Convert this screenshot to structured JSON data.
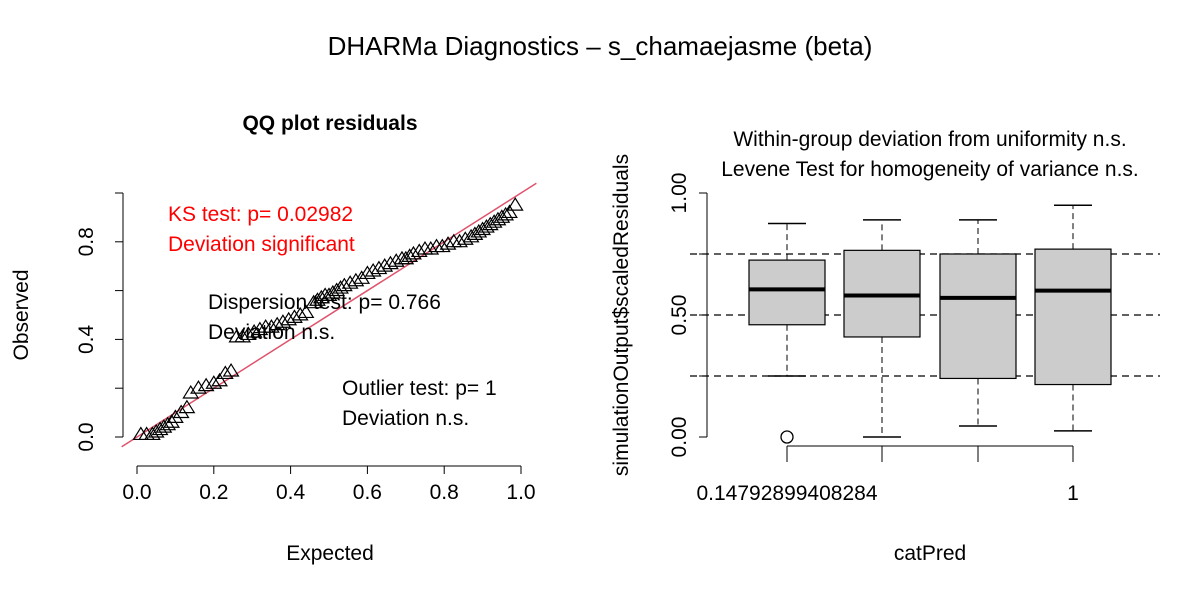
{
  "main_title": "DHARMa Diagnostics – s_chamaejasme (beta)",
  "colors": {
    "ks_text": "#FF0000",
    "ref_line": "#DF536B",
    "box_fill": "#CCCCCC",
    "ink": "#000000"
  },
  "chart_data": [
    {
      "type": "scatter",
      "title": "QQ plot residuals",
      "xlabel": "Expected",
      "ylabel": "Observed",
      "xlim": [
        0,
        1
      ],
      "ylim": [
        0,
        1
      ],
      "x_ticks": [
        "0.0",
        "0.2",
        "0.4",
        "0.6",
        "0.8",
        "1.0"
      ],
      "y_ticks": [
        "0.0",
        "0.4",
        "0.8"
      ],
      "marker": "triangle",
      "reference_line": {
        "intercept": 0,
        "slope": 1
      },
      "points": [
        [
          0.01,
          0.01
        ],
        [
          0.025,
          0.01
        ],
        [
          0.04,
          0.01
        ],
        [
          0.05,
          0.02
        ],
        [
          0.06,
          0.03
        ],
        [
          0.07,
          0.04
        ],
        [
          0.08,
          0.05
        ],
        [
          0.09,
          0.06
        ],
        [
          0.1,
          0.08
        ],
        [
          0.115,
          0.1
        ],
        [
          0.13,
          0.12
        ],
        [
          0.14,
          0.18
        ],
        [
          0.16,
          0.2
        ],
        [
          0.18,
          0.21
        ],
        [
          0.2,
          0.22
        ],
        [
          0.215,
          0.23
        ],
        [
          0.23,
          0.26
        ],
        [
          0.245,
          0.27
        ],
        [
          0.26,
          0.41
        ],
        [
          0.275,
          0.41
        ],
        [
          0.29,
          0.42
        ],
        [
          0.305,
          0.43
        ],
        [
          0.32,
          0.44
        ],
        [
          0.335,
          0.45
        ],
        [
          0.35,
          0.45
        ],
        [
          0.365,
          0.46
        ],
        [
          0.38,
          0.47
        ],
        [
          0.395,
          0.48
        ],
        [
          0.41,
          0.49
        ],
        [
          0.425,
          0.5
        ],
        [
          0.44,
          0.51
        ],
        [
          0.46,
          0.55
        ],
        [
          0.47,
          0.56
        ],
        [
          0.48,
          0.57
        ],
        [
          0.49,
          0.58
        ],
        [
          0.5,
          0.58
        ],
        [
          0.51,
          0.59
        ],
        [
          0.52,
          0.6
        ],
        [
          0.53,
          0.61
        ],
        [
          0.54,
          0.62
        ],
        [
          0.555,
          0.63
        ],
        [
          0.57,
          0.64
        ],
        [
          0.585,
          0.65
        ],
        [
          0.6,
          0.67
        ],
        [
          0.615,
          0.68
        ],
        [
          0.63,
          0.69
        ],
        [
          0.645,
          0.7
        ],
        [
          0.66,
          0.71
        ],
        [
          0.675,
          0.72
        ],
        [
          0.69,
          0.73
        ],
        [
          0.7,
          0.73
        ],
        [
          0.71,
          0.74
        ],
        [
          0.72,
          0.75
        ],
        [
          0.735,
          0.76
        ],
        [
          0.75,
          0.77
        ],
        [
          0.765,
          0.77
        ],
        [
          0.78,
          0.78
        ],
        [
          0.795,
          0.78
        ],
        [
          0.81,
          0.79
        ],
        [
          0.825,
          0.8
        ],
        [
          0.84,
          0.8
        ],
        [
          0.855,
          0.81
        ],
        [
          0.87,
          0.82
        ],
        [
          0.88,
          0.83
        ],
        [
          0.89,
          0.84
        ],
        [
          0.9,
          0.85
        ],
        [
          0.91,
          0.86
        ],
        [
          0.92,
          0.87
        ],
        [
          0.93,
          0.88
        ],
        [
          0.94,
          0.89
        ],
        [
          0.95,
          0.9
        ],
        [
          0.96,
          0.91
        ],
        [
          0.97,
          0.92
        ],
        [
          0.985,
          0.95
        ]
      ],
      "annotations": {
        "ks": [
          "KS test: p= 0.02982",
          "Deviation  significant"
        ],
        "dispersion": [
          "Dispersion test: p= 0.766",
          "Deviation  n.s."
        ],
        "outlier": [
          "Outlier test: p= 1",
          "Deviation  n.s."
        ]
      }
    },
    {
      "type": "boxplot",
      "title": [
        "Within-group deviation from uniformity n.s.",
        "Levene Test for homogeneity of variance n.s."
      ],
      "xlabel": "catPred",
      "ylabel": "simulationOutput$scaledResiduals",
      "ylim": [
        0,
        1
      ],
      "y_ticks": [
        "0.00",
        "0.50",
        "1.00"
      ],
      "hlines": [
        0.25,
        0.5,
        0.75
      ],
      "x_tick_labels": [
        "0.14792899408284",
        "",
        "",
        "1"
      ],
      "boxes": [
        {
          "whisker_low": 0.25,
          "q1": 0.46,
          "median": 0.605,
          "q3": 0.725,
          "whisker_high": 0.875,
          "outliers": [
            0.0
          ]
        },
        {
          "whisker_low": 0.0,
          "q1": 0.41,
          "median": 0.58,
          "q3": 0.765,
          "whisker_high": 0.89,
          "outliers": []
        },
        {
          "whisker_low": 0.045,
          "q1": 0.24,
          "median": 0.57,
          "q3": 0.75,
          "whisker_high": 0.89,
          "outliers": []
        },
        {
          "whisker_low": 0.025,
          "q1": 0.215,
          "median": 0.6,
          "q3": 0.77,
          "whisker_high": 0.95,
          "outliers": []
        }
      ]
    }
  ]
}
